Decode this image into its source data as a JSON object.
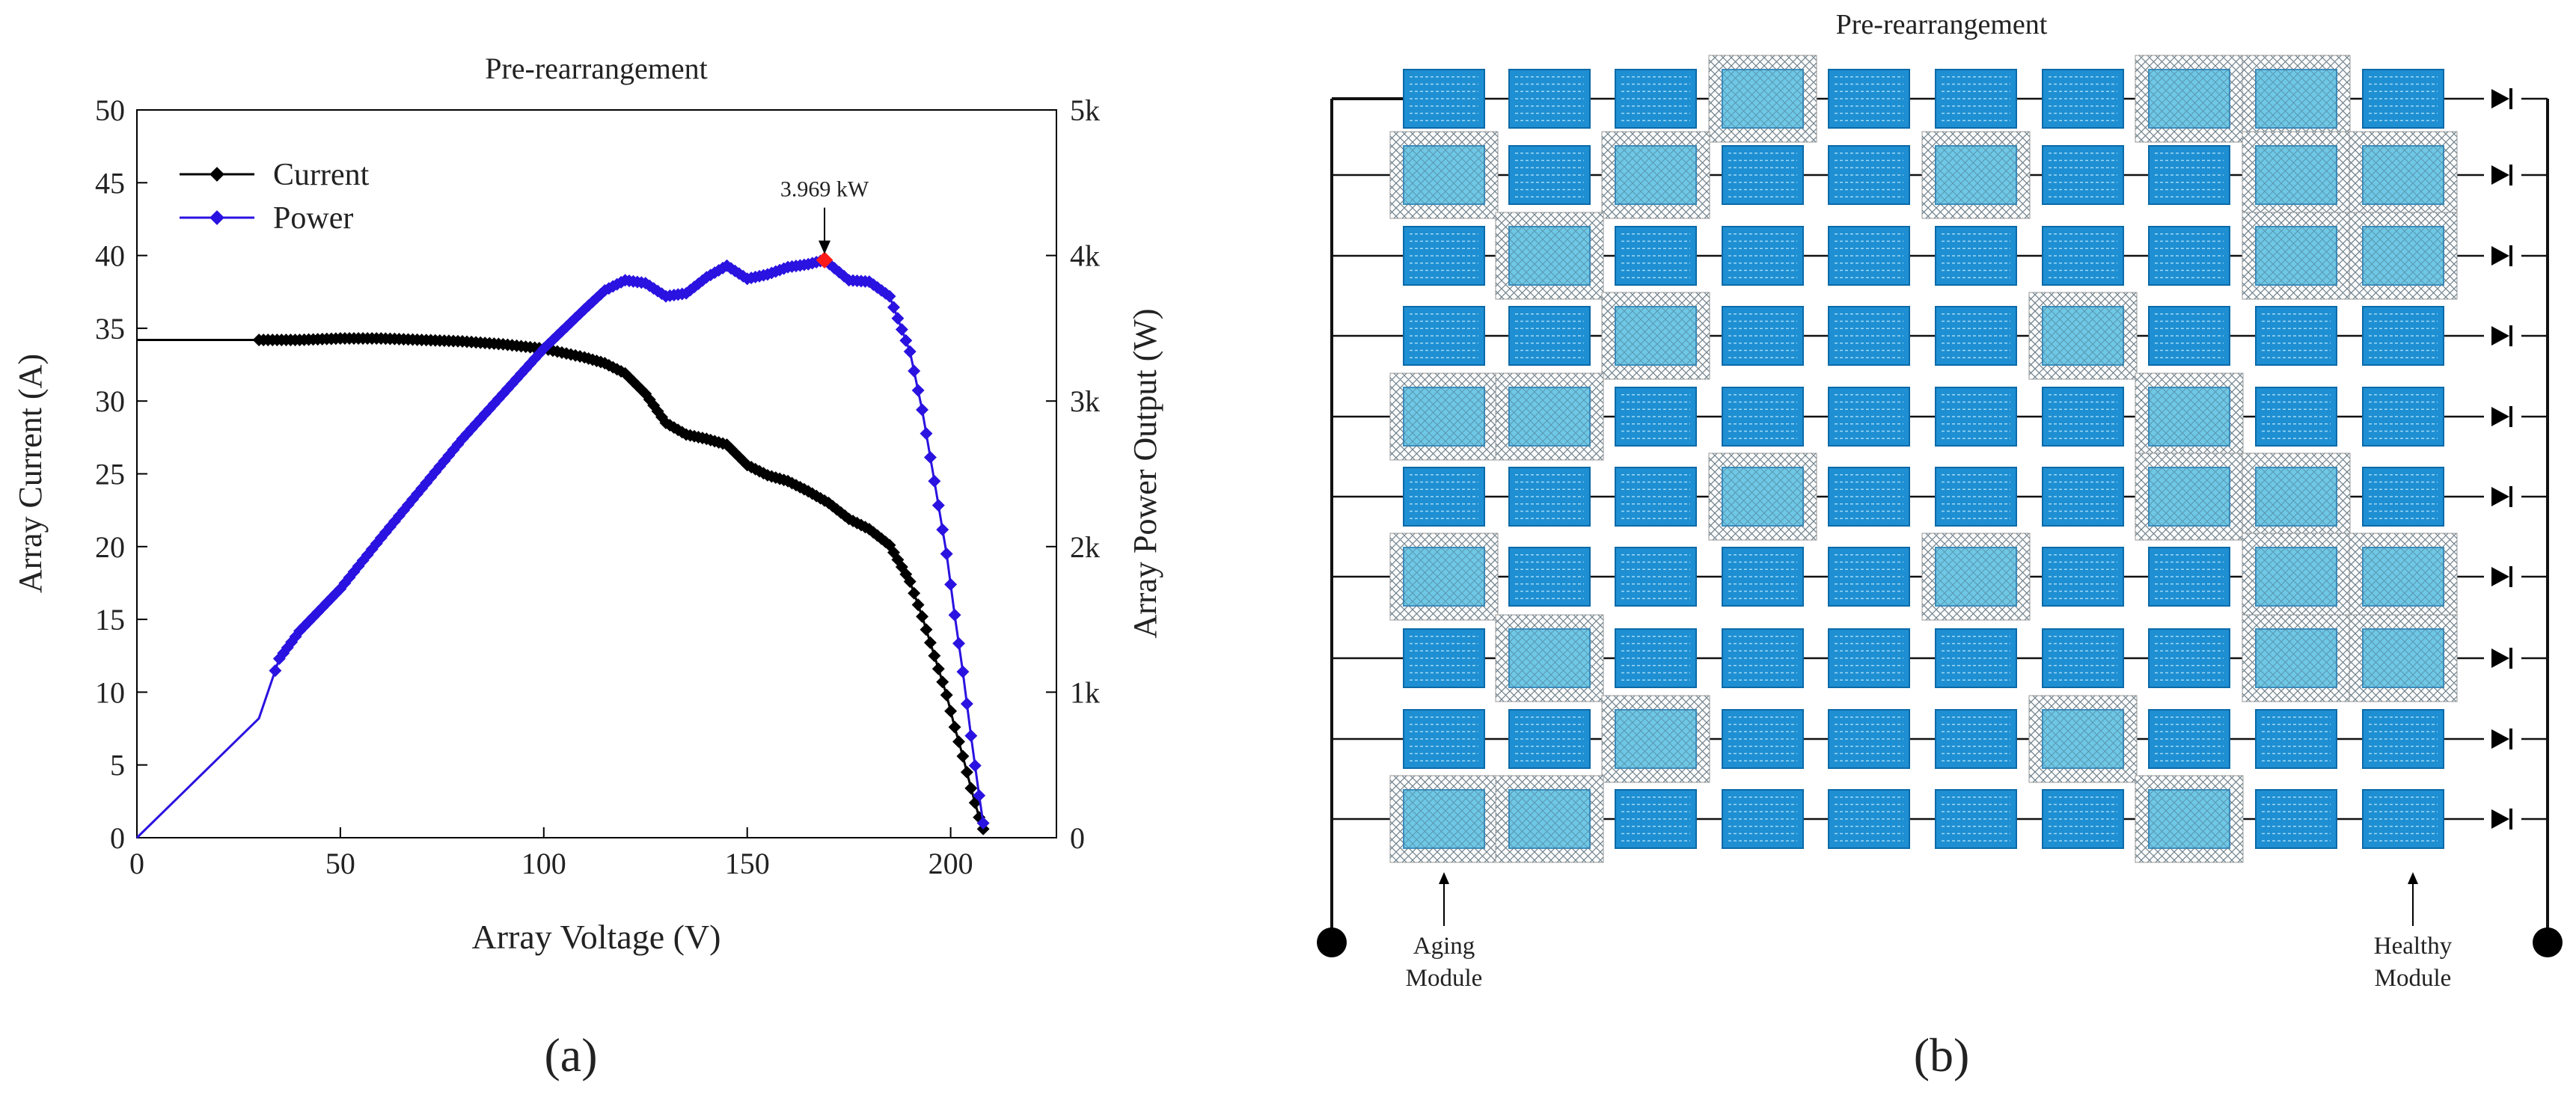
{
  "panel_a_label": "(a)",
  "panel_b_label": "(b)",
  "chart_data": {
    "type": "line",
    "title": "Pre-rearrangement",
    "xlabel": "Array Voltage (V)",
    "ylabel": "Array Current (A)",
    "y2label": "Array Power Output (W)",
    "xlim": [
      0,
      226
    ],
    "ylim": [
      0,
      50
    ],
    "y2lim": [
      0,
      5000
    ],
    "xticks": [
      "0",
      "50",
      "100",
      "150",
      "200"
    ],
    "yticks": [
      "0",
      "5",
      "10",
      "15",
      "20",
      "25",
      "30",
      "35",
      "40",
      "45",
      "50"
    ],
    "y2ticks": [
      "0",
      "1k",
      "2k",
      "3k",
      "4k",
      "5k"
    ],
    "legend_position": "top-left",
    "grid": false,
    "annotation": {
      "text": "3.969 kW",
      "x": 169,
      "y2": 3969
    },
    "colors": {
      "current": "#000000",
      "power": "#2a12e0",
      "mpp": "#ff1a1a"
    },
    "series": [
      {
        "name": "Current",
        "axis": "left",
        "x": [
          0,
          30,
          40,
          50,
          60,
          70,
          80,
          90,
          100,
          110,
          115,
          120,
          125,
          130,
          135,
          140,
          145,
          150,
          155,
          160,
          165,
          170,
          175,
          180,
          185,
          190,
          193,
          196,
          199,
          201,
          203,
          205,
          207,
          208
        ],
        "y": [
          34.2,
          34.2,
          34.2,
          34.3,
          34.3,
          34.2,
          34.1,
          33.9,
          33.6,
          33.0,
          32.6,
          31.9,
          30.5,
          28.5,
          27.7,
          27.4,
          27.0,
          25.6,
          24.9,
          24.5,
          23.8,
          23.0,
          21.9,
          21.2,
          20.1,
          17.6,
          15.2,
          12.5,
          9.8,
          7.6,
          5.6,
          3.4,
          1.4,
          0.6
        ]
      },
      {
        "name": "Power",
        "axis": "right",
        "x": [
          0,
          30,
          35,
          40,
          50,
          60,
          70,
          80,
          90,
          100,
          110,
          115,
          120,
          125,
          130,
          135,
          140,
          145,
          150,
          155,
          160,
          165,
          169,
          175,
          180,
          185,
          190,
          193,
          196,
          199,
          201,
          203,
          205,
          207,
          208
        ],
        "y": [
          0,
          820,
          1230,
          1420,
          1710,
          2060,
          2400,
          2740,
          3050,
          3360,
          3630,
          3760,
          3830,
          3810,
          3720,
          3740,
          3850,
          3930,
          3840,
          3870,
          3920,
          3940,
          3969,
          3830,
          3820,
          3720,
          3340,
          2940,
          2450,
          1950,
          1530,
          1140,
          700,
          290,
          100
        ]
      }
    ]
  },
  "array_diagram": {
    "title": "Pre-rearrangement",
    "label_aging": [
      "Aging",
      "Module"
    ],
    "label_healthy": [
      "Healthy",
      "Module"
    ],
    "colors": {
      "healthy_panel": "#1e8fd2",
      "aging_panel": "#6ec8e6",
      "wire": "#111111"
    },
    "aging_grid": [
      [
        0,
        0,
        0,
        1,
        0,
        0,
        0,
        1,
        1,
        0
      ],
      [
        1,
        0,
        1,
        0,
        0,
        1,
        0,
        0,
        1,
        1
      ],
      [
        0,
        1,
        0,
        0,
        0,
        0,
        0,
        0,
        1,
        1
      ],
      [
        0,
        0,
        1,
        0,
        0,
        0,
        1,
        0,
        0,
        0
      ],
      [
        1,
        1,
        0,
        0,
        0,
        0,
        0,
        1,
        0,
        0
      ],
      [
        0,
        0,
        0,
        1,
        0,
        0,
        0,
        1,
        1,
        0
      ],
      [
        1,
        0,
        0,
        0,
        0,
        1,
        0,
        0,
        1,
        1
      ],
      [
        0,
        1,
        0,
        0,
        0,
        0,
        0,
        0,
        1,
        1
      ],
      [
        0,
        0,
        1,
        0,
        0,
        0,
        1,
        0,
        0,
        0
      ],
      [
        1,
        1,
        0,
        0,
        0,
        0,
        0,
        1,
        0,
        0
      ]
    ]
  }
}
